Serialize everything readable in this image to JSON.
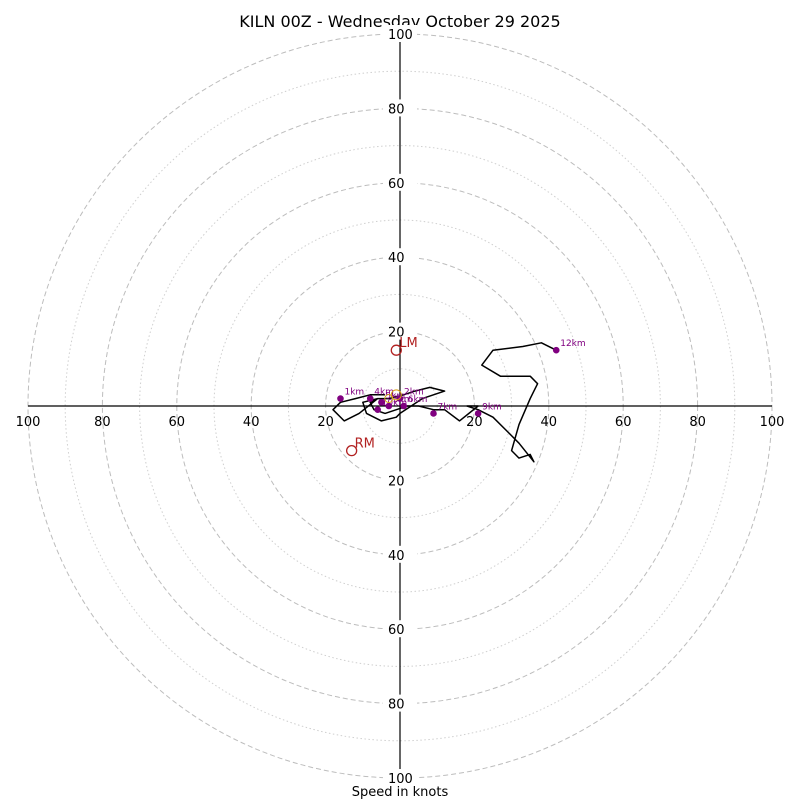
{
  "chart_data": {
    "type": "scatter",
    "title": "KILN 00Z - Wednesday October 29 2025",
    "xlabel": "Speed in knots",
    "xlim": [
      -100,
      100
    ],
    "ylim": [
      -100,
      100
    ],
    "rings_major": [
      20,
      40,
      60,
      80,
      100
    ],
    "rings_minor": [
      10,
      30,
      50,
      70,
      90
    ],
    "x_tick_labels": [
      "100",
      "80",
      "60",
      "40",
      "20",
      "20",
      "40",
      "60",
      "80",
      "100"
    ],
    "y_tick_labels": [
      "100",
      "80",
      "60",
      "40",
      "20",
      "20",
      "40",
      "60",
      "80",
      "100"
    ],
    "x_tick_values": [
      -100,
      -80,
      -60,
      -40,
      -20,
      20,
      40,
      60,
      80,
      100
    ],
    "y_tick_values": [
      100,
      80,
      60,
      40,
      20,
      -20,
      -40,
      -60,
      -80,
      -100
    ],
    "colors": {
      "hodograph": "#000000",
      "height_markers": "#800080",
      "storm_motion": "#b22222",
      "bunkers": "#d4a017"
    },
    "hodograph": {
      "u": [
        -4,
        -8,
        -12,
        -16,
        -18,
        -15,
        -11,
        -6,
        -10,
        -9,
        -5,
        -1,
        0,
        3,
        6,
        9,
        12,
        8,
        4,
        1,
        -3,
        -6,
        -8,
        -7,
        -4,
        -1,
        2,
        5,
        9,
        12,
        16,
        21,
        19,
        18,
        21,
        25,
        29,
        32,
        36,
        35,
        32,
        30,
        32,
        35,
        36,
        37,
        35,
        27,
        22,
        25,
        33,
        38,
        42
      ],
      "v": [
        3,
        3,
        2,
        1,
        -1,
        -4,
        -2,
        2,
        1,
        -2,
        -4,
        -3,
        -2,
        0,
        2,
        3,
        4,
        5,
        4,
        3,
        2,
        2,
        1,
        -1,
        -2,
        -1,
        0,
        0,
        -1,
        -1,
        -4,
        0,
        0,
        0,
        -1,
        -3,
        -7,
        -10,
        -15,
        -13,
        -14,
        -12,
        -5,
        2,
        4,
        6,
        8,
        8,
        11,
        15,
        16,
        17,
        15
      ]
    },
    "height_markers": [
      {
        "label": "1km",
        "u": -16,
        "v": 2
      },
      {
        "label": "2km",
        "u": 0,
        "v": 2
      },
      {
        "label": "3km",
        "u": -3,
        "v": 0
      },
      {
        "label": "4km",
        "u": -8,
        "v": 2
      },
      {
        "label": "5km",
        "u": -5,
        "v": 1
      },
      {
        "label": "6km",
        "u": 1,
        "v": 0
      },
      {
        "label": "7km",
        "u": 9,
        "v": -2
      },
      {
        "label": "9km",
        "u": 21,
        "v": -2
      },
      {
        "label": "10km",
        "u": -6,
        "v": -1
      },
      {
        "label": "12km",
        "u": 42,
        "v": 15
      }
    ],
    "storm_motion": [
      {
        "label": "LM",
        "u": -1,
        "v": 15
      },
      {
        "label": "RM",
        "u": -13,
        "v": -12
      }
    ]
  }
}
